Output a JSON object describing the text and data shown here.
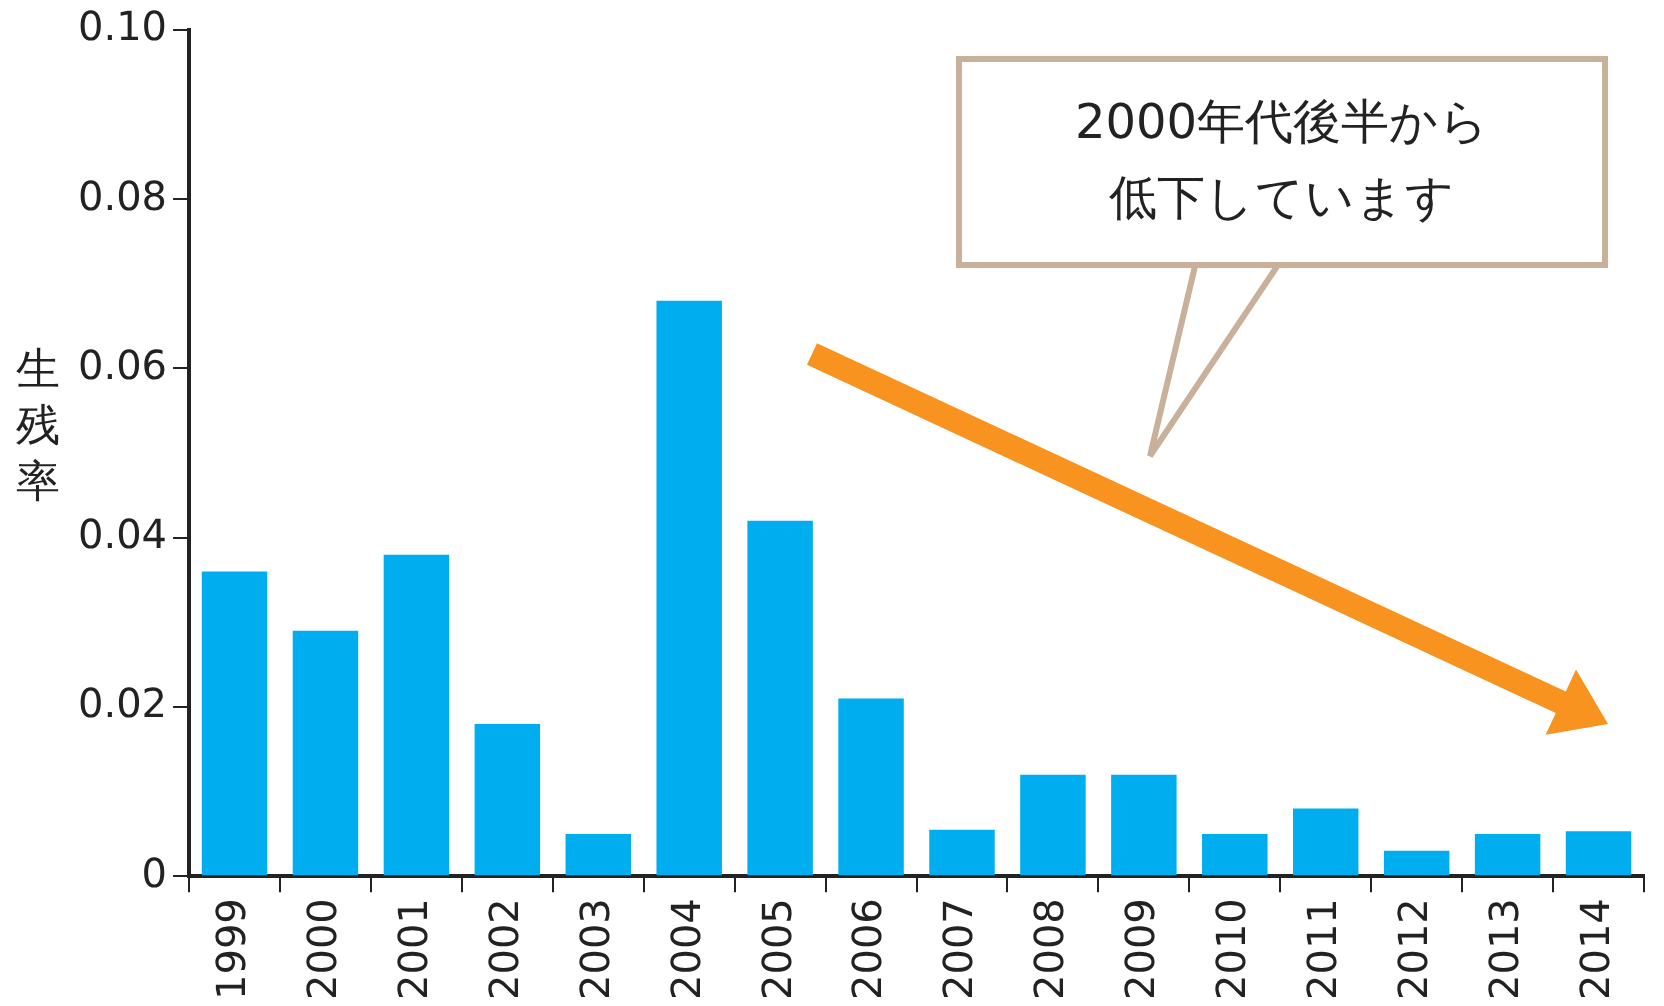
{
  "chart_data": {
    "type": "bar",
    "ylabel": "生残率",
    "categories": [
      "1999",
      "2000",
      "2001",
      "2002",
      "2003",
      "2004",
      "2005",
      "2006",
      "2007",
      "2008",
      "2009",
      "2010",
      "2011",
      "2012",
      "2013",
      "2014"
    ],
    "values": [
      0.036,
      0.029,
      0.038,
      0.018,
      0.005,
      0.068,
      0.042,
      0.021,
      0.0055,
      0.012,
      0.012,
      0.005,
      0.008,
      0.003,
      0.005,
      0.0053
    ],
    "color": "#00aeef",
    "ylim": [
      0,
      0.1
    ],
    "yticks": [
      {
        "value": 0,
        "label": "0"
      },
      0.02,
      0.04,
      0.06,
      0.08,
      {
        "value": 0.1,
        "label": "0.10"
      }
    ],
    "grid": false,
    "legend": false,
    "annotations": [
      "2000年代後半から低下しています"
    ]
  }
}
